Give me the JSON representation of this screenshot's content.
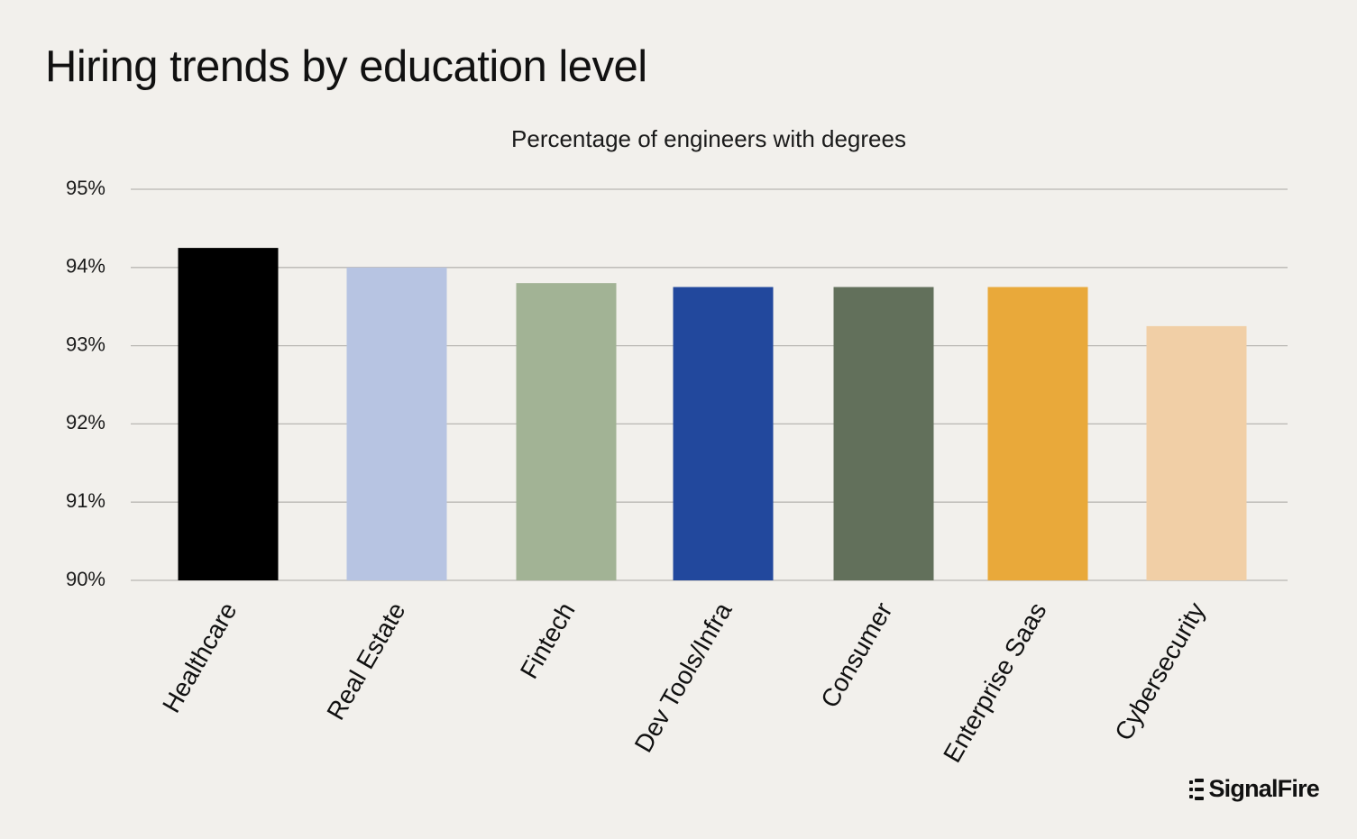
{
  "header": {
    "title": "Hiring trends by education level"
  },
  "chart_data": {
    "type": "bar",
    "title": "Percentage of engineers with degrees",
    "xlabel": "",
    "ylabel": "",
    "categories": [
      "Healthcare",
      "Real Estate",
      "Fintech",
      "Dev Tools/Infra",
      "Consumer",
      "Enterprise Saas",
      "Cybersecurity"
    ],
    "values": [
      94.25,
      94.0,
      93.8,
      93.75,
      93.75,
      93.75,
      93.25
    ],
    "colors": [
      "#000000",
      "#b7c4e2",
      "#a2b395",
      "#22489d",
      "#62705b",
      "#e9a93a",
      "#f1cfa6"
    ],
    "ylim": [
      90,
      95
    ],
    "yticks": [
      90,
      91,
      92,
      93,
      94,
      95
    ],
    "ytick_labels": [
      "90%",
      "91%",
      "92%",
      "93%",
      "94%",
      "95%"
    ],
    "grid": true,
    "legend": "none"
  },
  "brand": {
    "logo_icon": "signalfire-mark-icon",
    "logo_text": "SignalFire"
  }
}
